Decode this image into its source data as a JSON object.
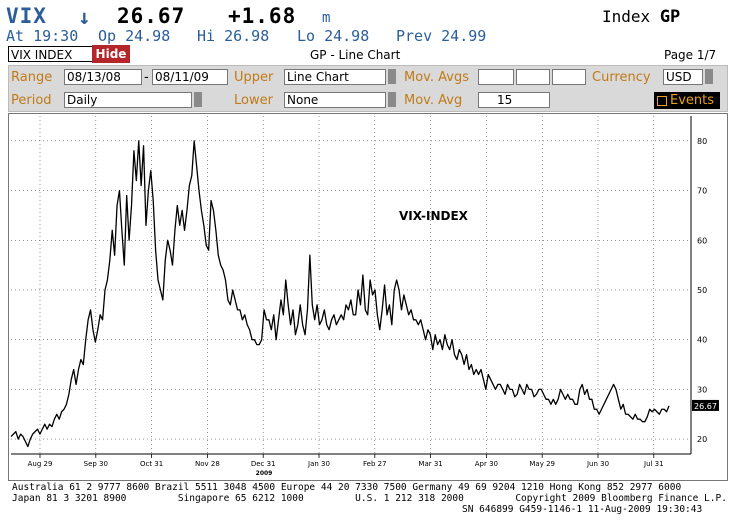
{
  "header": {
    "ticker": "VIX",
    "arrow": "↓",
    "last": "26.67",
    "change": "+1.68",
    "change_marker": "m",
    "index_label": "Index",
    "function": "GP",
    "at": "At 19:30",
    "open": "Op 24.98",
    "high": "Hi 26.98",
    "low": "Lo 24.98",
    "prev": "Prev 24.99"
  },
  "toolbar": {
    "security": "VIX INDEX",
    "hide_label": "Hide",
    "chart_title": "GP - Line Chart",
    "page": "Page 1/7"
  },
  "settings": {
    "range_label": "Range",
    "range_start": "08/13/08",
    "range_dash": "-",
    "range_end": "08/11/09",
    "upper_label": "Upper",
    "upper_value": "Line Chart",
    "mov_avgs_label": "Mov. Avgs",
    "currency_label": "Currency",
    "currency_value": "USD",
    "period_label": "Period",
    "period_value": "Daily",
    "lower_label": "Lower",
    "lower_value": "None",
    "mov_avg_label": "Mov. Avg",
    "mov_avg_value": "15",
    "events_label": "Events"
  },
  "chart_data": {
    "type": "line",
    "title": "VIX-INDEX",
    "year_label": "2009",
    "last_value_label": "26.67",
    "ylim": [
      17,
      85
    ],
    "yticks": [
      "20",
      "30",
      "40",
      "50",
      "60",
      "70",
      "80"
    ],
    "xticks": [
      "Aug 29",
      "Sep 30",
      "Oct 31",
      "Nov 28",
      "Dec 31",
      "Jan 30",
      "Feb 27",
      "Mar 31",
      "Apr 30",
      "May 29",
      "Jun 30",
      "Jul 31"
    ],
    "grid": true,
    "series": [
      {
        "values": [
          20.5,
          21,
          21.5,
          20,
          21,
          20.5,
          19.5,
          18.5,
          20,
          21,
          21.5,
          22,
          21,
          22,
          23,
          22,
          23,
          22.5,
          24,
          25,
          24,
          25.5,
          26,
          27,
          29,
          32,
          34,
          31,
          34,
          36,
          35,
          40,
          44,
          46,
          42,
          39.5,
          42,
          45,
          44,
          50,
          52,
          56,
          62,
          57,
          67,
          70,
          62,
          55,
          69,
          60,
          67,
          78,
          72,
          80,
          71,
          79,
          63,
          70,
          74,
          68,
          58,
          52,
          50,
          48,
          56,
          60,
          58,
          55,
          62,
          67,
          63,
          66,
          62,
          66,
          71,
          73,
          80,
          75,
          70,
          66,
          63,
          59,
          58,
          68,
          66,
          62,
          57,
          55,
          54,
          52,
          48,
          47,
          50,
          48,
          46,
          46,
          44,
          45,
          43,
          42,
          40,
          40,
          39,
          39,
          40,
          46,
          44,
          44,
          42,
          45,
          40,
          44,
          48,
          45,
          52,
          47,
          43,
          46,
          41,
          43,
          47,
          43,
          41,
          46,
          57,
          47,
          44,
          47,
          43,
          44,
          46,
          43,
          42,
          44,
          45,
          43,
          44,
          45,
          44,
          47,
          46,
          48,
          45,
          45,
          50,
          47,
          53,
          46,
          45,
          52,
          49,
          50,
          45,
          42,
          46,
          51,
          45,
          47,
          43,
          50,
          52,
          50,
          46,
          49,
          47,
          45,
          46,
          44,
          44,
          43,
          44,
          42,
          40,
          42,
          41,
          38,
          41,
          39,
          40,
          38,
          41,
          39,
          38,
          40,
          37,
          36,
          38,
          37,
          35,
          37,
          34,
          35,
          33,
          34,
          33,
          34,
          32,
          30,
          33,
          32,
          31,
          30,
          31,
          31,
          30,
          29,
          31,
          30,
          30,
          28.5,
          29,
          31,
          30,
          29,
          31,
          30,
          30,
          28.5,
          29,
          30,
          30,
          29,
          28,
          28,
          27,
          28,
          27,
          28,
          30,
          29,
          28,
          29,
          28,
          28,
          27,
          27,
          30,
          31,
          29,
          30,
          28,
          28,
          26,
          26,
          25,
          26,
          27,
          28,
          29,
          30,
          31,
          30,
          28,
          26,
          27,
          25,
          25,
          24.5,
          24,
          25,
          24,
          24,
          23.5,
          23.5,
          24.5,
          26,
          25.5,
          26,
          25.5,
          25,
          26,
          26,
          25.5,
          26.67
        ]
      }
    ]
  },
  "footer": {
    "line1": "Australia 61 2 9777 8600 Brazil 5511 3048 4500 Europe 44 20 7330 7500 Germany 49 69 9204 1210 Hong Kong 852 2977 6000",
    "line2": "Japan 81 3 3201 8900         Singapore 65 6212 1000         U.S. 1 212 318 2000         Copyright 2009 Bloomberg Finance L.P.",
    "line3": "SN 646899 G459-1146-1 11-Aug-2009 19:30:43"
  }
}
